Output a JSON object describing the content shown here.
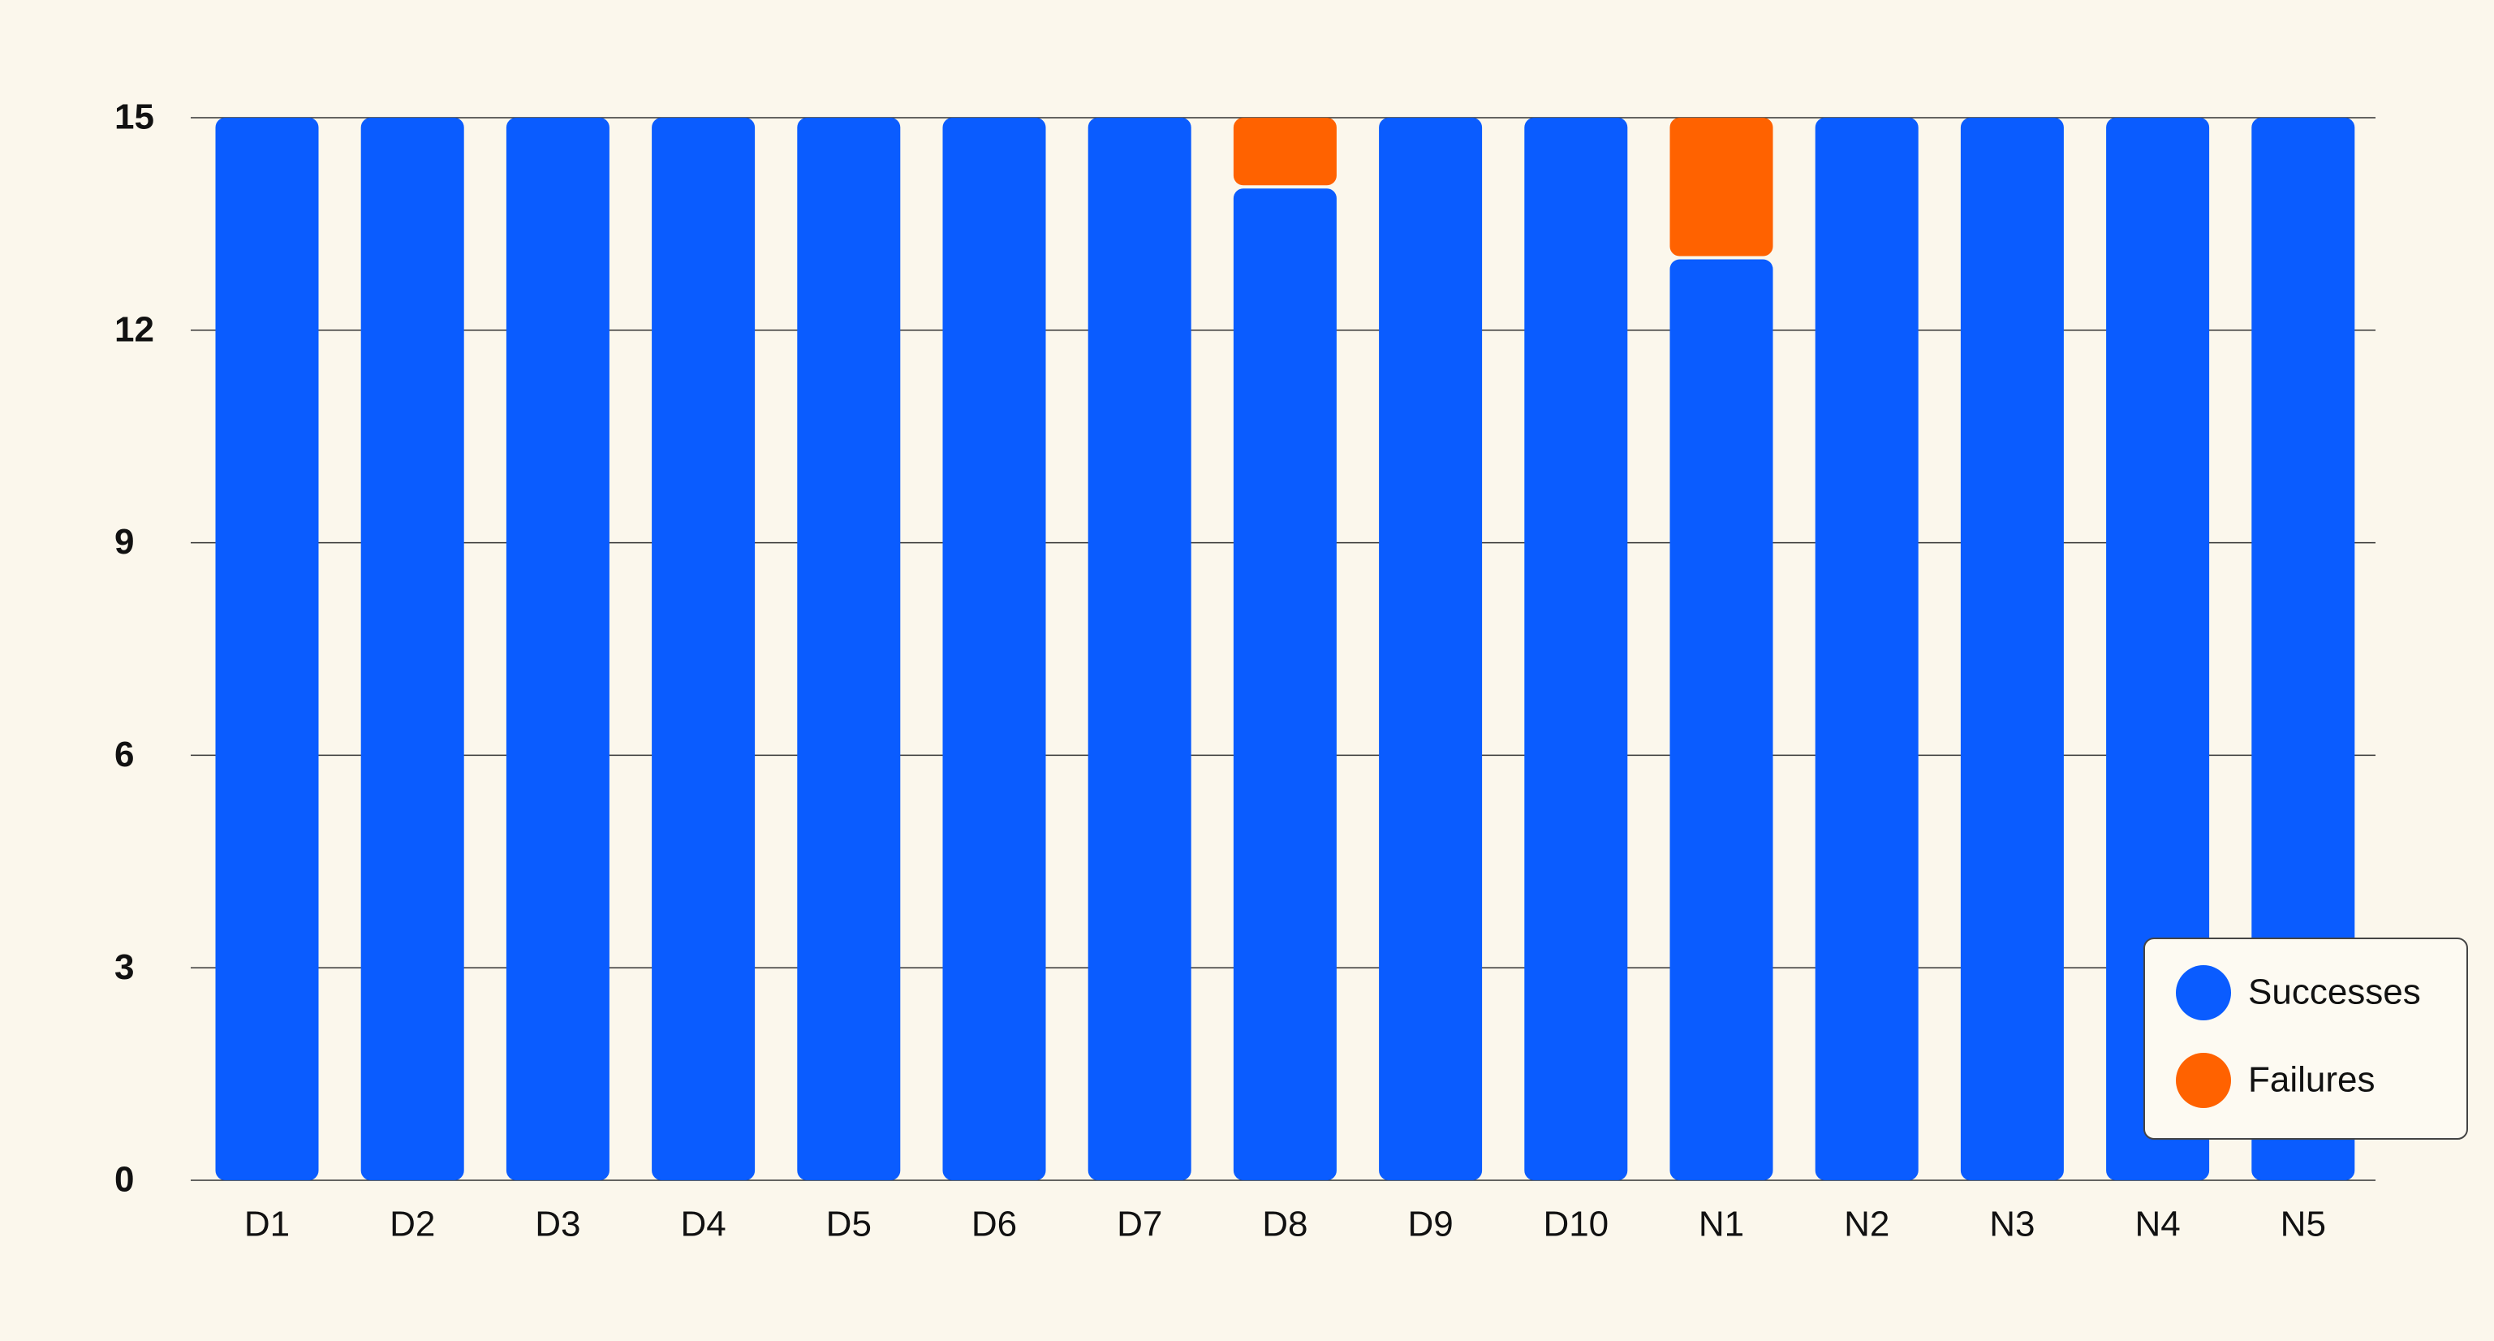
{
  "chart_data": {
    "type": "stacked_bar",
    "categories": [
      "D1",
      "D2",
      "D3",
      "D4",
      "D5",
      "D6",
      "D7",
      "D8",
      "D9",
      "D10",
      "N1",
      "N2",
      "N3",
      "N4",
      "N5"
    ],
    "series": [
      {
        "name": "Successes",
        "color": "#0a5cff",
        "values": [
          15,
          15,
          15,
          15,
          15,
          15,
          15,
          14,
          15,
          15,
          13,
          15,
          15,
          15,
          15
        ]
      },
      {
        "name": "Failures",
        "color": "#ff6200",
        "values": [
          0,
          0,
          0,
          0,
          0,
          0,
          0,
          1,
          0,
          0,
          2,
          0,
          0,
          0,
          0
        ]
      }
    ],
    "ylim": [
      0,
      15
    ],
    "yticks": [
      0,
      3,
      6,
      9,
      12,
      15
    ],
    "grid": true,
    "legend": "lower right"
  }
}
